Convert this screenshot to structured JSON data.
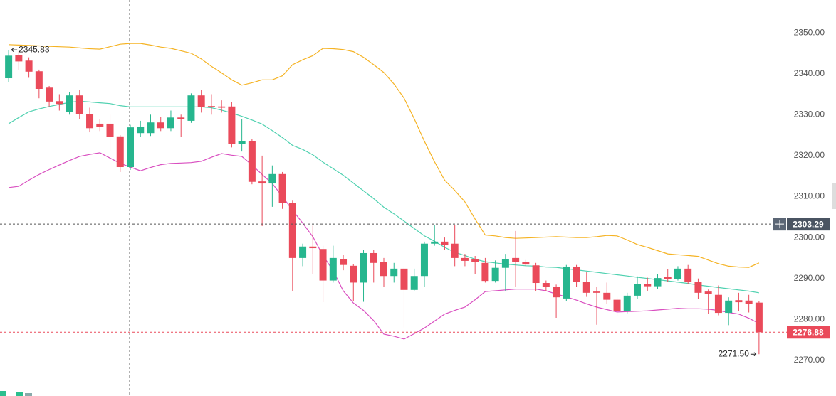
{
  "chart_data": {
    "type": "candlestick",
    "open": [
      2338.9,
      2344.5,
      2343.2,
      2340.6,
      2336.6,
      2333.3,
      2330.6,
      2334.7,
      2330.2,
      2327.8,
      2327.8,
      2324.7,
      2317.2,
      2325.5,
      2325.5,
      2328.1,
      2326.7,
      2329.3,
      2328.5,
      2334.7,
      2332.1,
      2332.0,
      2332.0,
      2322.8,
      2323.6,
      2313.7,
      2313.2,
      2315.5,
      2308.5,
      2295.0,
      2297.8,
      2297.2,
      2289.5,
      2294.7,
      2293.1,
      2289.0,
      2296.2,
      2294.1,
      2290.6,
      2292.4,
      2287.2,
      2290.6,
      2298.5,
      2299.0,
      2298.5,
      2295.0,
      2294.8,
      2293.8,
      2289.4,
      2292.6,
      2295.0,
      2294.1,
      2293.2,
      2288.9,
      2287.9,
      2285.1,
      2292.9,
      2289.1,
      2286.8,
      2286.5,
      2284.8,
      2282.1,
      2285.8,
      2288.6,
      2288.1,
      2290.3,
      2289.8,
      2292.4,
      2289.1,
      2286.8,
      2286.0,
      2281.6,
      2284.7,
      2284.6,
      2284.1
    ],
    "high": [
      2345.83,
      2345.5,
      2344.0,
      2341.0,
      2337.0,
      2335.0,
      2335.5,
      2336.0,
      2331.7,
      2329.0,
      2330.0,
      2325.0,
      2327.5,
      2328.5,
      2330.0,
      2329.5,
      2331.0,
      2330.0,
      2335.2,
      2336.0,
      2335.0,
      2333.5,
      2333.0,
      2329.0,
      2324.0,
      2320.0,
      2317.6,
      2316.0,
      2309.0,
      2298.5,
      2302.9,
      2298.0,
      2298.0,
      2295.8,
      2293.5,
      2297.0,
      2297.0,
      2295.0,
      2293.8,
      2293.0,
      2292.4,
      2299.0,
      2303.0,
      2300.0,
      2303.0,
      2296.0,
      2295.5,
      2295.0,
      2294.4,
      2296.0,
      2301.6,
      2294.5,
      2293.8,
      2289.5,
      2288.5,
      2293.3,
      2293.3,
      2291.5,
      2288.0,
      2289.0,
      2285.5,
      2286.5,
      2290.5,
      2290.2,
      2291.0,
      2292.2,
      2293.0,
      2293.3,
      2290.0,
      2287.3,
      2288.3,
      2285.4,
      2286.5,
      2286.0,
      2284.5
    ],
    "low": [
      2338.0,
      2341.0,
      2339.0,
      2334.0,
      2332.0,
      2331.0,
      2330.0,
      2329.0,
      2325.7,
      2326.0,
      2321.0,
      2316.0,
      2316.5,
      2324.5,
      2324.8,
      2326.0,
      2326.0,
      2324.5,
      2328.0,
      2330.5,
      2330.0,
      2330.5,
      2322.0,
      2321.0,
      2313.0,
      2302.8,
      2307.5,
      2307.0,
      2287.0,
      2293.0,
      2291.0,
      2284.2,
      2289.0,
      2292.0,
      2284.5,
      2284.3,
      2289.0,
      2288.0,
      2289.0,
      2278.0,
      2287.0,
      2288.0,
      2298.0,
      2297.0,
      2293.0,
      2293.0,
      2291.0,
      2289.0,
      2289.0,
      2287.0,
      2288.0,
      2293.0,
      2287.0,
      2287.0,
      2280.4,
      2284.5,
      2288.0,
      2285.5,
      2278.7,
      2283.8,
      2280.8,
      2281.5,
      2285.0,
      2287.0,
      2287.5,
      2289.2,
      2289.5,
      2288.6,
      2285.0,
      2281.4,
      2281.0,
      2278.6,
      2282.0,
      2281.7,
      2271.5
    ],
    "close": [
      2344.4,
      2343.0,
      2340.5,
      2336.3,
      2333.2,
      2332.6,
      2334.7,
      2330.2,
      2326.7,
      2327.1,
      2324.5,
      2317.2,
      2326.9,
      2327.1,
      2328.1,
      2326.7,
      2329.3,
      2329.0,
      2334.7,
      2331.8,
      2331.8,
      2331.7,
      2322.8,
      2323.6,
      2313.6,
      2313.2,
      2315.5,
      2308.5,
      2295.0,
      2297.8,
      2297.4,
      2289.5,
      2295.0,
      2293.3,
      2289.0,
      2296.2,
      2293.8,
      2290.6,
      2292.4,
      2287.2,
      2290.6,
      2298.5,
      2299.0,
      2298.1,
      2295.0,
      2294.3,
      2294.1,
      2289.4,
      2292.6,
      2294.8,
      2294.1,
      2293.4,
      2288.9,
      2287.9,
      2285.4,
      2292.9,
      2289.1,
      2286.5,
      2286.5,
      2284.8,
      2282.1,
      2285.8,
      2288.6,
      2288.1,
      2290.1,
      2289.8,
      2292.4,
      2289.1,
      2286.5,
      2286.3,
      2281.6,
      2284.6,
      2284.2,
      2283.7,
      2276.88
    ],
    "up_color": "#26b68e",
    "down_color": "#ea4a5a",
    "series": [
      {
        "color": "#f5b324",
        "values": [
          2347.1,
          2347.0,
          2346.9,
          2346.8,
          2346.7,
          2346.6,
          2346.5,
          2346.3,
          2346.1,
          2346.0,
          2346.6,
          2347.2,
          2347.4,
          2347.4,
          2347.0,
          2346.5,
          2346.2,
          2345.6,
          2345.0,
          2343.6,
          2341.8,
          2340.2,
          2338.5,
          2337.2,
          2337.8,
          2338.5,
          2338.5,
          2339.5,
          2342.2,
          2343.4,
          2344.4,
          2346.2,
          2346.1,
          2345.9,
          2345.4,
          2344.0,
          2342.2,
          2340.3,
          2337.5,
          2334.0,
          2329.0,
          2323.5,
          2318.5,
          2314.0,
          2311.5,
          2308.7,
          2304.5,
          2300.6,
          2300.4,
          2300.0,
          2299.8,
          2299.9,
          2300.0,
          2300.1,
          2300.2,
          2300.1,
          2300.0,
          2300.0,
          2300.2,
          2300.5,
          2300.4,
          2299.4,
          2298.3,
          2297.6,
          2296.8,
          2296.0,
          2295.8,
          2295.6,
          2295.4,
          2294.5,
          2293.6,
          2293.0,
          2292.8,
          2292.7,
          2293.8
        ]
      },
      {
        "color": "#4fd1b0",
        "values": [
          2327.8,
          2329.3,
          2330.7,
          2331.4,
          2332.0,
          2332.5,
          2333.0,
          2333.3,
          2333.1,
          2332.9,
          2332.7,
          2332.2,
          2331.9,
          2331.9,
          2331.9,
          2331.9,
          2331.9,
          2331.9,
          2331.9,
          2331.9,
          2331.7,
          2331.1,
          2330.4,
          2329.6,
          2328.7,
          2327.7,
          2326.1,
          2324.4,
          2322.5,
          2321.5,
          2320.2,
          2318.4,
          2316.8,
          2315.2,
          2313.3,
          2311.4,
          2309.5,
          2307.4,
          2305.8,
          2304.0,
          2302.2,
          2300.4,
          2299.1,
          2297.6,
          2296.4,
          2295.6,
          2294.7,
          2294.1,
          2293.8,
          2293.5,
          2293.3,
          2293.1,
          2293.0,
          2292.8,
          2292.7,
          2292.4,
          2292.1,
          2291.8,
          2291.5,
          2291.2,
          2290.9,
          2290.6,
          2290.3,
          2290.0,
          2289.7,
          2289.4,
          2289.1,
          2288.8,
          2288.4,
          2288.1,
          2287.8,
          2287.5,
          2287.2,
          2286.9,
          2286.5
        ]
      },
      {
        "color": "#d94fc0",
        "values": [
          2312.2,
          2312.5,
          2314.0,
          2315.4,
          2316.6,
          2317.7,
          2318.8,
          2319.8,
          2320.3,
          2320.7,
          2319.4,
          2318.1,
          2317.2,
          2316.3,
          2317.1,
          2317.8,
          2318.1,
          2318.2,
          2318.3,
          2318.6,
          2319.6,
          2320.5,
          2320.1,
          2319.8,
          2317.7,
          2315.4,
          2313.2,
          2310.0,
          2306.7,
          2303.5,
          2300.2,
          2295.6,
          2291.9,
          2287.0,
          2284.0,
          2282.2,
          2279.7,
          2276.4,
          2275.9,
          2275.2,
          2276.5,
          2277.9,
          2279.6,
          2281.3,
          2282.2,
          2283.0,
          2284.8,
          2286.8,
          2287.0,
          2287.2,
          2287.4,
          2287.4,
          2287.4,
          2287.0,
          2286.2,
          2285.5,
          2284.7,
          2283.8,
          2283.0,
          2282.4,
          2281.8,
          2281.9,
          2282.0,
          2282.1,
          2282.3,
          2282.5,
          2282.7,
          2282.6,
          2282.6,
          2282.5,
          2282.2,
          2281.7,
          2281.3,
          2280.3,
          2279.0
        ]
      }
    ],
    "ylim": [
      2261.3,
      2358.0
    ],
    "yticks": [
      {
        "value": 2270,
        "label": "2270.00"
      },
      {
        "value": 2280,
        "label": "2280.00"
      },
      {
        "value": 2290,
        "label": "2290.00"
      },
      {
        "value": 2300,
        "label": "2300.00"
      },
      {
        "value": 2310,
        "label": "2310.00"
      },
      {
        "value": 2320,
        "label": "2320.00"
      },
      {
        "value": 2330,
        "label": "2330.00"
      },
      {
        "value": 2340,
        "label": "2340.00"
      },
      {
        "value": 2350,
        "label": "2350.00"
      }
    ],
    "crosshair_price": {
      "value": 2303.29,
      "label": "2303.29"
    },
    "last_price": {
      "value": 2276.88,
      "label": "2276.88"
    },
    "high_label": {
      "value": 2345.83,
      "label": "2345.83"
    },
    "low_label": {
      "value": 2271.5,
      "label": "2271.50"
    }
  }
}
